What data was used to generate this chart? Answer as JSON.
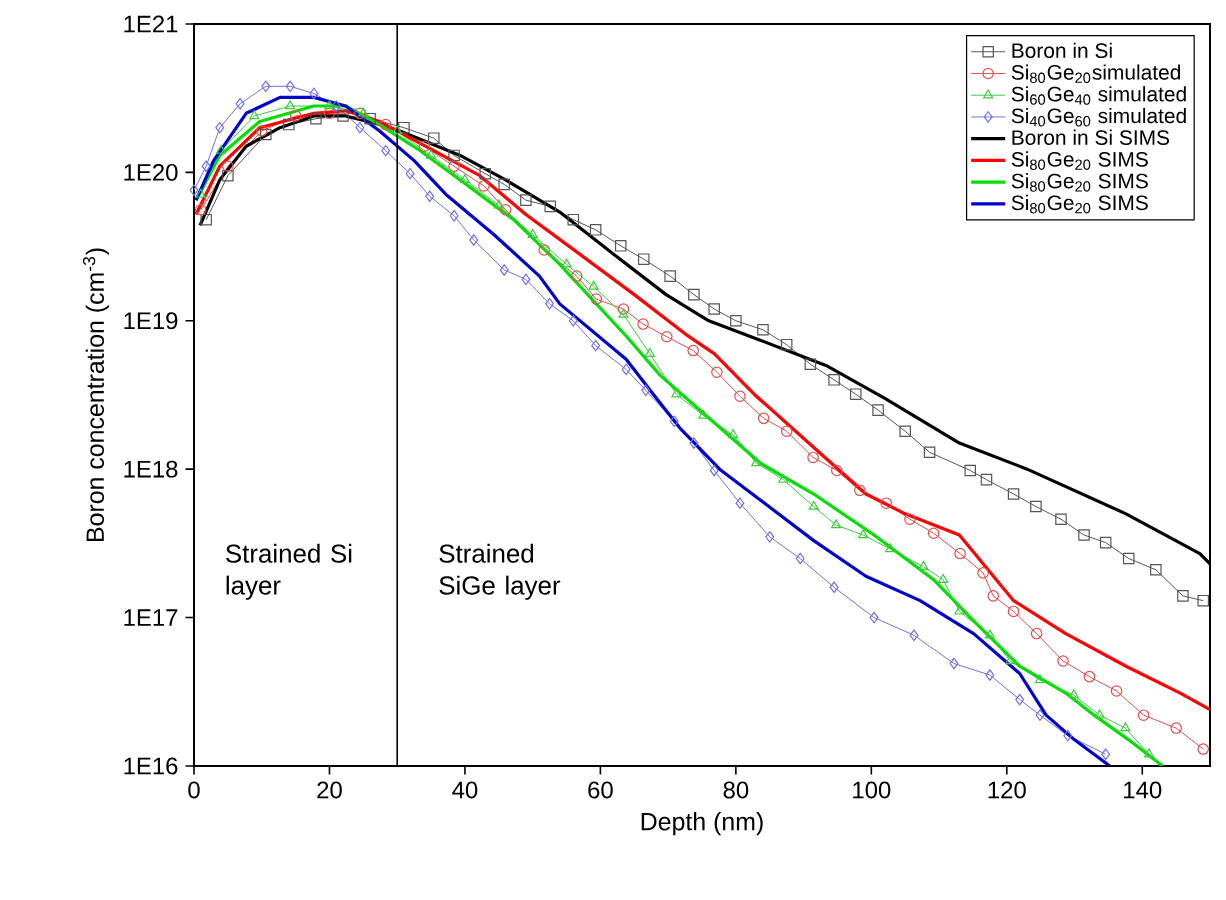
{
  "chart_data": {
    "type": "line",
    "xlabel": "Depth (nm)",
    "ylabel": "Boron concentration (cm$^{-3}$)",
    "log": "y",
    "xlim": [
      0,
      150
    ],
    "ylim": [
      1e+16,
      1e+21
    ],
    "xticks": [
      0,
      20,
      40,
      60,
      80,
      100,
      120,
      140
    ],
    "yticks": [
      {
        "value": 1e+16,
        "label": "1E16"
      },
      {
        "value": 1e+17,
        "label": "1E17"
      },
      {
        "value": 1e+18,
        "label": "1E18"
      },
      {
        "value": 1e+19,
        "label": "1E19"
      },
      {
        "value": 1e+20,
        "label": "1E20"
      },
      {
        "value": 1e+21,
        "label": "1E21"
      }
    ],
    "legend": "top right",
    "grid": false,
    "line_style": "solid",
    "ref_lines": [
      {
        "axis": "x",
        "value": 30,
        "color": "#000000"
      }
    ],
    "annotations": [
      "Strained Si layer",
      "Strained SiGe layer"
    ],
    "series": [
      {
        "name": "Boron in Si",
        "color": "#555555",
        "marker": "square",
        "x": [
          1.8,
          5,
          10.6,
          14,
          18,
          22,
          26,
          31,
          35.4,
          38.4,
          43,
          45.8,
          49,
          52.6,
          56,
          59.3,
          63,
          66.4,
          70.3,
          73.8,
          76.8,
          80,
          84,
          87.5,
          91,
          94.5,
          97.7,
          101,
          105,
          108.6,
          114.6,
          117,
          121,
          124.3,
          128,
          131.4,
          134.6,
          138,
          142,
          146,
          149
        ],
        "values": [
          4.8e+19,
          9.5e+19,
          1.8e+20,
          2.1e+20,
          2.3e+20,
          2.4e+20,
          2.3e+20,
          2e+20,
          1.7e+20,
          1.3e+20,
          9.8e+19,
          8.3e+19,
          6.5e+19,
          5.9e+19,
          4.8e+19,
          4.1e+19,
          3.2e+19,
          2.6e+19,
          2e+19,
          1.5e+19,
          1.2e+19,
          1e+19,
          8.7e+18,
          6.9e+18,
          5.1e+18,
          4e+18,
          3.2e+18,
          2.5e+18,
          1.8e+18,
          1.3e+18,
          9.8e+17,
          8.5e+17,
          6.8e+17,
          5.6e+17,
          4.6e+17,
          3.6e+17,
          3.2e+17,
          2.5e+17,
          2.1e+17,
          1.4e+17,
          1.3e+17
        ]
      },
      {
        "name": "Si$_{80}$Ge$_{20}$simulated",
        "color": "#e05050",
        "marker": "circle",
        "x": [
          1,
          5,
          10,
          15,
          20,
          24.5,
          28.3,
          34,
          38.4,
          42.8,
          46,
          51.7,
          56.5,
          59.4,
          63.4,
          66.3,
          69.8,
          73.7,
          77.2,
          80.6,
          84.1,
          87.5,
          91.4,
          94.9,
          98.3,
          102.2,
          105.7,
          109.2,
          113.1,
          116.5,
          118,
          121,
          124.4,
          128.3,
          132.2,
          136.2,
          140.2,
          145,
          149
        ],
        "values": [
          5.6e+19,
          1.1e+20,
          1.9e+20,
          2.4e+20,
          2.5e+20,
          2.5e+20,
          2.1e+20,
          1.5e+20,
          1.1e+20,
          8.1e+19,
          5.6e+19,
          3e+19,
          2e+19,
          1.4e+19,
          1.2e+19,
          9.5e+18,
          7.8e+18,
          6.3e+18,
          4.5e+18,
          3.1e+18,
          2.2e+18,
          1.8e+18,
          1.2e+18,
          9.8e+17,
          7.2e+17,
          5.9e+17,
          4.6e+17,
          3.7e+17,
          2.7e+17,
          2e+17,
          1.4e+17,
          1.1e+17,
          7.8e+16,
          5.1e+16,
          4e+16,
          3.2e+16,
          2.2e+16,
          1.8e+16,
          1.3e+16
        ]
      },
      {
        "name": "Si$_{60}$Ge$_{40}$ simulated",
        "color": "#40c840",
        "marker": "triangle",
        "x": [
          1,
          4,
          8.9,
          14.2,
          20,
          25,
          30,
          35,
          40,
          45,
          50,
          55,
          59,
          63.4,
          67.3,
          71.2,
          75.2,
          79.6,
          83,
          87,
          91.5,
          94.8,
          98.8,
          102.8,
          107.7,
          110.6,
          113,
          117.5,
          120.5,
          124.9,
          129.9,
          133.7,
          137.5,
          141
        ],
        "values": [
          7.1e+19,
          1.4e+20,
          2.4e+20,
          2.8e+20,
          2.8e+20,
          2.5e+20,
          1.9e+20,
          1.3e+20,
          8.9e+19,
          6e+19,
          3.8e+19,
          2.4e+19,
          1.7e+19,
          1.1e+19,
          6e+18,
          3.2e+18,
          2.3e+18,
          1.7e+18,
          1.1e+18,
          8.5e+17,
          5.6e+17,
          4.2e+17,
          3.6e+17,
          2.9e+17,
          2.2e+17,
          1.8e+17,
          1.1e+17,
          7.6e+16,
          5.1e+16,
          3.8e+16,
          3e+16,
          2.2e+16,
          1.8e+16,
          1.2e+16
        ]
      },
      {
        "name": "Si$_{40}$Ge$_{60}$ simulated",
        "color": "#7070e0",
        "marker": "diamond",
        "x": [
          0,
          1.8,
          3.8,
          6.8,
          10.6,
          14.2,
          17.7,
          21,
          24.5,
          28.3,
          31.9,
          34.8,
          38.4,
          41.3,
          45.8,
          49,
          52.5,
          56,
          59.3,
          63.8,
          66.7,
          70.9,
          73.8,
          76.8,
          80.6,
          85,
          89.5,
          94.5,
          100.4,
          106.3,
          112.2,
          117.5,
          121.9,
          124.9,
          129,
          134.6
        ],
        "values": [
          7.6e+19,
          1.1e+20,
          2e+20,
          2.9e+20,
          3.8e+20,
          3.8e+20,
          3.4e+20,
          2.8e+20,
          2e+20,
          1.4e+20,
          9.8e+19,
          6.9e+19,
          5.1e+19,
          3.5e+19,
          2.2e+19,
          1.9e+19,
          1.3e+19,
          1e+19,
          6.8e+18,
          4.7e+18,
          3.4e+18,
          2.1e+18,
          1.5e+18,
          9.8e+17,
          5.9e+17,
          3.5e+17,
          2.5e+17,
          1.6e+17,
          1e+17,
          7.6e+16,
          4.9e+16,
          4.1e+16,
          2.8e+16,
          2.2e+16,
          1.6e+16,
          1.2e+16
        ]
      },
      {
        "name": "Boron in Si SIMS",
        "color": "#000000",
        "marker": "none",
        "x": [
          0.9,
          3.8,
          7.7,
          12.7,
          17.7,
          22.4,
          27.4,
          30.4,
          39.3,
          46,
          54,
          62,
          69.7,
          76,
          83.6,
          93.3,
          102,
          113,
          123,
          137.6,
          148.5,
          150
        ],
        "values": [
          4.4e+19,
          8.9e+19,
          1.5e+20,
          2e+20,
          2.4e+20,
          2.4e+20,
          2.1e+20,
          1.9e+20,
          1.3e+20,
          8.9e+19,
          5.4e+19,
          2.8e+19,
          1.5e+19,
          1e+19,
          7.4e+18,
          5e+18,
          3e+18,
          1.5e+18,
          1e+18,
          5e+17,
          2.7e+17,
          2.3e+17
        ]
      },
      {
        "name": "Si$_{80}$Ge$_{20}$ SIMS",
        "color": "#ff0000",
        "marker": "none",
        "x": [
          0.3,
          3.8,
          9.7,
          17.7,
          22.4,
          27.4,
          35.4,
          42.2,
          49,
          57,
          65,
          72.6,
          76.8,
          82.7,
          91.5,
          99.2,
          105,
          113,
          121,
          128.7,
          137.6,
          145.6,
          150
        ],
        "values": [
          5.2e+19,
          1.1e+20,
          2e+20,
          2.5e+20,
          2.6e+20,
          2.2e+20,
          1.4e+20,
          9.5e+19,
          5.2e+19,
          2.8e+19,
          1.5e+19,
          8.1e+18,
          6e+18,
          3.2e+18,
          1.4e+18,
          6.8e+17,
          5e+17,
          3.6e+17,
          1.3e+17,
          7.8e+16,
          4.7e+16,
          3.1e+16,
          2.4e+16
        ]
      },
      {
        "name": "Si$_{80}$Ge$_{20}$ SIMS",
        "color": "#00dd00",
        "marker": "none",
        "x": [
          0.3,
          3.8,
          9.7,
          17.7,
          22.4,
          27.4,
          33.4,
          40.2,
          47.2,
          54,
          63.8,
          68.8,
          75.6,
          83.6,
          91.5,
          100.4,
          109.2,
          115.1,
          121.9,
          128.7,
          132.9,
          138,
          143
        ],
        "values": [
          6.5e+19,
          1.3e+20,
          2.2e+20,
          2.8e+20,
          2.8e+20,
          2.1e+20,
          1.4e+20,
          8.3e+19,
          4.8e+19,
          2.4e+19,
          7.9e+18,
          4.3e+18,
          2.3e+18,
          1.1e+18,
          6.8e+17,
          3.6e+17,
          1.8e+17,
          9.5e+16,
          4.7e+16,
          3.1e+16,
          2.2e+16,
          1.5e+16,
          1e+16
        ]
      },
      {
        "name": "Si$_{80}$Ge$_{20}$ SIMS",
        "color": "#0000cc",
        "marker": "none",
        "x": [
          0.3,
          2.9,
          7.7,
          12.7,
          17.7,
          22.4,
          27.4,
          32.5,
          37.2,
          44.3,
          51,
          54,
          63.8,
          67.8,
          71.7,
          77.6,
          83.6,
          91.5,
          99.2,
          107.2,
          115.1,
          121.9,
          125.8,
          130,
          135.2
        ],
        "values": [
          6.5e+19,
          1.2e+20,
          2.5e+20,
          3.2e+20,
          3.2e+20,
          2.8e+20,
          1.9e+20,
          1.2e+20,
          7.1e+19,
          3.8e+19,
          2e+19,
          1.3e+19,
          5.5e+18,
          3.2e+18,
          1.9e+18,
          1e+18,
          6.2e+17,
          3.3e+17,
          1.9e+17,
          1.3e+17,
          7.8e+16,
          4.2e+16,
          2.2e+16,
          1.5e+16,
          1e+16
        ]
      }
    ]
  }
}
